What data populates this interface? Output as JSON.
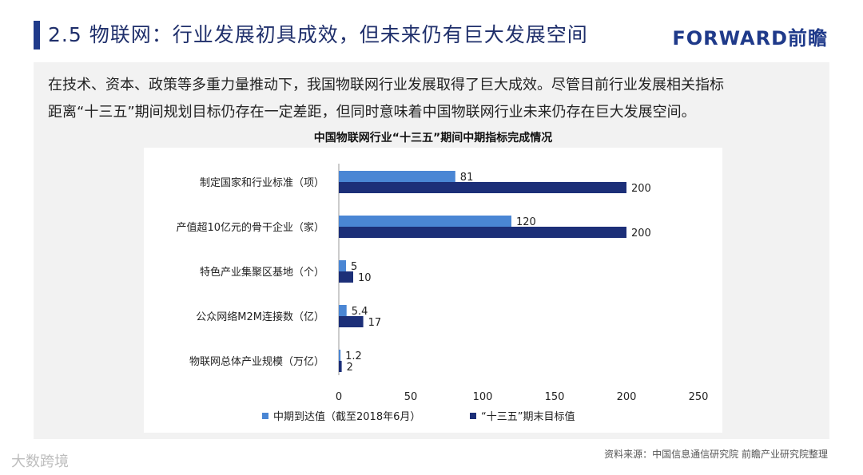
{
  "header": {
    "title": "2.5 物联网：行业发展初具成效，但未来仍有巨大发展空间",
    "logo": "FORWARD前瞻"
  },
  "intro": {
    "line1": "在技术、资本、政策等多重力量推动下，我国物联网行业发展取得了巨大成效。尽管目前行业发展相关指标",
    "line2": "距离“十三五”期间规划目标仍存在一定差距，但同时意味着中国物联网行业未来仍存在巨大发展空间。"
  },
  "chart_data": {
    "type": "bar",
    "orientation": "horizontal",
    "title": "中国物联网行业“十三五”期间中期指标完成情况",
    "categories": [
      "制定国家和行业标准（项）",
      "产值超10亿元的骨干企业（家）",
      "特色产业集聚区基地（个）",
      "公众网络M2M连接数（亿）",
      "物联网总体产业规模（万亿）"
    ],
    "series": [
      {
        "name": "中期到达值（截至2018年6月）",
        "values": [
          81,
          120,
          5,
          5.4,
          1.2
        ],
        "labels": [
          "81",
          "120",
          "5",
          "5.4",
          "1.2"
        ],
        "color": "#4a86d4"
      },
      {
        "name": "“十三五”期末目标值",
        "values": [
          200,
          200,
          10,
          17,
          2
        ],
        "labels": [
          "200",
          "200",
          "10",
          "17",
          "2"
        ],
        "color": "#1c2f78"
      }
    ],
    "xlim": [
      0,
      250
    ],
    "xticks": [
      "0",
      "50",
      "100",
      "150",
      "200",
      "250"
    ],
    "grid": false,
    "legend_position": "bottom"
  },
  "footer": {
    "source": "资料来源：中国信息通信研究院 前瞻产业研究院整理",
    "watermark": "大数跨境"
  }
}
